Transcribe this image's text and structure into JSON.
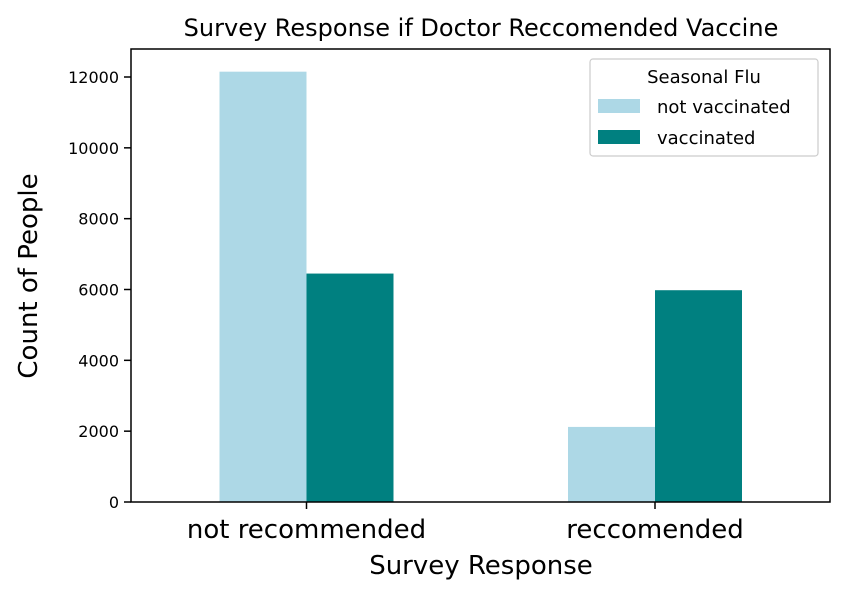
{
  "chart_data": {
    "type": "bar",
    "title": "Survey Response if Doctor Reccomended Vaccine",
    "xlabel": "Survey Response",
    "ylabel": "Count of People",
    "categories": [
      "not recommended",
      "reccomended"
    ],
    "series": [
      {
        "name": "not vaccinated",
        "values": [
          12150,
          2120
        ],
        "color": "#add8e6"
      },
      {
        "name": "vaccinated",
        "values": [
          6450,
          5980
        ],
        "color": "#008080"
      }
    ],
    "ylim": [
      0,
      12800
    ],
    "yticks": [
      0,
      2000,
      4000,
      6000,
      8000,
      10000,
      12000
    ],
    "legend": {
      "title": "Seasonal Flu",
      "placement": "top-right"
    },
    "grid": false
  }
}
